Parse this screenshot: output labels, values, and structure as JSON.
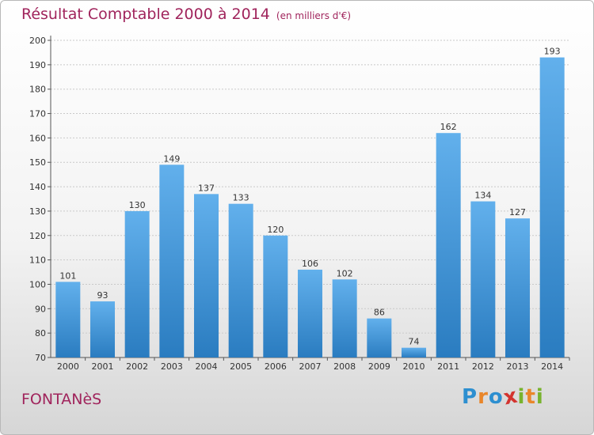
{
  "title": "Résultat Comptable 2000 à 2014",
  "unit_note": "(en milliers d'€)",
  "town": "FONTANèS",
  "logo": {
    "text": "Proxiti",
    "letters": [
      {
        "ch": "P",
        "color": "#2d8fd0"
      },
      {
        "ch": "r",
        "color": "#e9862a"
      },
      {
        "ch": "o",
        "color": "#2d8fd0"
      },
      {
        "ch": "x",
        "color": "#d3342f"
      },
      {
        "ch": "i",
        "color": "#78b32e"
      },
      {
        "ch": "t",
        "color": "#e9862a"
      },
      {
        "ch": "i",
        "color": "#78b32e"
      }
    ]
  },
  "colors": {
    "accent": "#a0245c",
    "bar_top": "#62b0ec",
    "bar_bottom": "#2a7cc0"
  },
  "chart_data": {
    "type": "bar",
    "title": "Résultat Comptable 2000 à 2014",
    "subtitle": "(en milliers d'€)",
    "xlabel": "",
    "ylabel": "",
    "categories": [
      "2000",
      "2001",
      "2002",
      "2003",
      "2004",
      "2005",
      "2006",
      "2007",
      "2008",
      "2009",
      "2010",
      "2011",
      "2012",
      "2013",
      "2014"
    ],
    "values": [
      101,
      93,
      130,
      149,
      137,
      133,
      120,
      106,
      102,
      86,
      74,
      162,
      134,
      127,
      193
    ],
    "ylim": [
      70,
      200
    ],
    "yticks": [
      70,
      80,
      90,
      100,
      110,
      120,
      130,
      140,
      150,
      160,
      170,
      180,
      190,
      200
    ],
    "grid": true,
    "legend": "none"
  }
}
